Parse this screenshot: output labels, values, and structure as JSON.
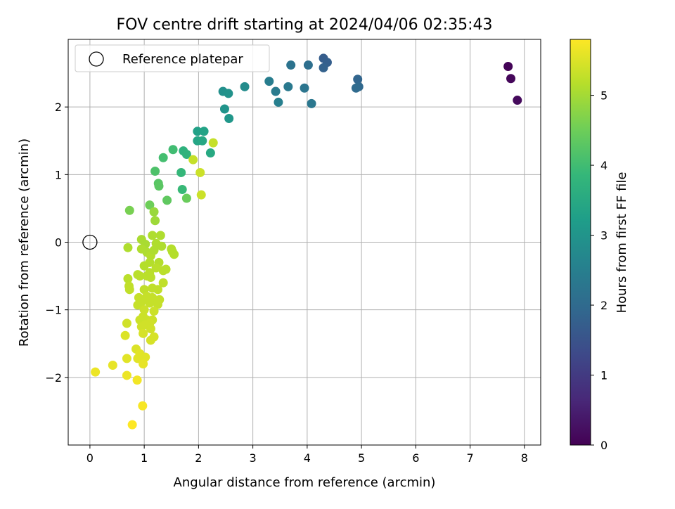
{
  "chart_data": {
    "type": "scatter",
    "title": "FOV centre drift starting at 2024/04/06 02:35:43",
    "xlabel": "Angular distance from reference (arcmin)",
    "ylabel": "Rotation from reference (arcmin)",
    "xlim": [
      -0.4,
      8.3
    ],
    "ylim": [
      -3.0,
      3.0
    ],
    "xticks": [
      0,
      1,
      2,
      3,
      4,
      5,
      6,
      7,
      8
    ],
    "yticks": [
      -2,
      -1,
      0,
      1,
      2
    ],
    "xtick_labels": [
      "0",
      "1",
      "2",
      "3",
      "4",
      "5",
      "6",
      "7",
      "8"
    ],
    "ytick_labels": [
      "−2",
      "−1",
      "0",
      "1",
      "2"
    ],
    "grid": true,
    "legend": {
      "position": "top-left",
      "entries": [
        {
          "label": "Reference platepar",
          "marker": "open-circle"
        }
      ]
    },
    "reference_point": {
      "x": 0,
      "y": 0
    },
    "colorbar": {
      "label": "Hours from first FF file",
      "colormap": "viridis",
      "range": [
        0,
        5.8
      ],
      "ticks": [
        0,
        1,
        2,
        3,
        4,
        5
      ],
      "tick_labels": [
        "0",
        "1",
        "2",
        "3",
        "4",
        "5"
      ],
      "colors": [
        "#440154",
        "#482878",
        "#3e4989",
        "#31688e",
        "#26828e",
        "#1f9e89",
        "#35b779",
        "#6ece58",
        "#b5de2b",
        "#fde725"
      ]
    },
    "points": [
      {
        "x": 7.7,
        "y": 2.6,
        "t": 0.05
      },
      {
        "x": 7.75,
        "y": 2.42,
        "t": 0.1
      },
      {
        "x": 7.87,
        "y": 2.1,
        "t": 0.15
      },
      {
        "x": 4.3,
        "y": 2.72,
        "t": 1.7
      },
      {
        "x": 4.37,
        "y": 2.66,
        "t": 1.75
      },
      {
        "x": 4.3,
        "y": 2.58,
        "t": 1.8
      },
      {
        "x": 4.93,
        "y": 2.41,
        "t": 1.9
      },
      {
        "x": 4.95,
        "y": 2.3,
        "t": 1.95
      },
      {
        "x": 4.9,
        "y": 2.28,
        "t": 2.0
      },
      {
        "x": 4.02,
        "y": 2.62,
        "t": 2.1
      },
      {
        "x": 3.7,
        "y": 2.62,
        "t": 2.2
      },
      {
        "x": 3.95,
        "y": 2.28,
        "t": 2.25
      },
      {
        "x": 4.08,
        "y": 2.05,
        "t": 2.3
      },
      {
        "x": 3.65,
        "y": 2.3,
        "t": 2.35
      },
      {
        "x": 3.42,
        "y": 2.23,
        "t": 2.4
      },
      {
        "x": 3.3,
        "y": 2.38,
        "t": 2.45
      },
      {
        "x": 3.47,
        "y": 2.07,
        "t": 2.5
      },
      {
        "x": 2.85,
        "y": 2.3,
        "t": 2.8
      },
      {
        "x": 2.45,
        "y": 2.23,
        "t": 2.9
      },
      {
        "x": 2.55,
        "y": 2.2,
        "t": 2.95
      },
      {
        "x": 2.48,
        "y": 1.97,
        "t": 3.0
      },
      {
        "x": 2.56,
        "y": 1.83,
        "t": 3.05
      },
      {
        "x": 1.98,
        "y": 1.64,
        "t": 3.3
      },
      {
        "x": 2.1,
        "y": 1.64,
        "t": 3.35
      },
      {
        "x": 1.98,
        "y": 1.5,
        "t": 3.4
      },
      {
        "x": 2.07,
        "y": 1.5,
        "t": 3.45
      },
      {
        "x": 2.22,
        "y": 1.32,
        "t": 3.5
      },
      {
        "x": 1.72,
        "y": 1.35,
        "t": 3.7
      },
      {
        "x": 1.78,
        "y": 1.3,
        "t": 3.75
      },
      {
        "x": 1.68,
        "y": 1.03,
        "t": 3.85
      },
      {
        "x": 1.7,
        "y": 0.78,
        "t": 3.9
      },
      {
        "x": 1.53,
        "y": 1.37,
        "t": 4.0
      },
      {
        "x": 1.35,
        "y": 1.25,
        "t": 4.05
      },
      {
        "x": 1.2,
        "y": 1.05,
        "t": 4.15
      },
      {
        "x": 1.26,
        "y": 0.87,
        "t": 4.25
      },
      {
        "x": 1.27,
        "y": 0.83,
        "t": 4.3
      },
      {
        "x": 1.42,
        "y": 0.62,
        "t": 4.35
      },
      {
        "x": 1.78,
        "y": 0.65,
        "t": 4.45
      },
      {
        "x": 1.1,
        "y": 0.55,
        "t": 4.5
      },
      {
        "x": 0.73,
        "y": 0.47,
        "t": 4.6
      },
      {
        "x": 1.18,
        "y": 0.45,
        "t": 4.9
      },
      {
        "x": 1.2,
        "y": 0.32,
        "t": 4.95
      },
      {
        "x": 2.27,
        "y": 1.47,
        "t": 5.3
      },
      {
        "x": 1.9,
        "y": 1.22,
        "t": 5.3
      },
      {
        "x": 2.03,
        "y": 1.03,
        "t": 5.35
      },
      {
        "x": 2.05,
        "y": 0.7,
        "t": 5.35
      },
      {
        "x": 0.95,
        "y": 0.04,
        "t": 5.05
      },
      {
        "x": 1.02,
        "y": -0.03,
        "t": 5.05
      },
      {
        "x": 1.15,
        "y": 0.1,
        "t": 5.1
      },
      {
        "x": 1.3,
        "y": 0.1,
        "t": 5.1
      },
      {
        "x": 1.22,
        "y": -0.02,
        "t": 5.1
      },
      {
        "x": 1.32,
        "y": -0.06,
        "t": 5.1
      },
      {
        "x": 1.5,
        "y": -0.1,
        "t": 5.15
      },
      {
        "x": 1.55,
        "y": -0.18,
        "t": 5.15
      },
      {
        "x": 1.52,
        "y": -0.14,
        "t": 5.15
      },
      {
        "x": 0.95,
        "y": -0.1,
        "t": 5.1
      },
      {
        "x": 1.05,
        "y": -0.15,
        "t": 5.1
      },
      {
        "x": 1.12,
        "y": -0.2,
        "t": 5.15
      },
      {
        "x": 1.18,
        "y": -0.12,
        "t": 5.1
      },
      {
        "x": 1.1,
        "y": -0.3,
        "t": 5.15
      },
      {
        "x": 1.0,
        "y": -0.35,
        "t": 5.15
      },
      {
        "x": 1.27,
        "y": -0.3,
        "t": 5.15
      },
      {
        "x": 1.35,
        "y": -0.42,
        "t": 5.2
      },
      {
        "x": 1.4,
        "y": -0.4,
        "t": 5.2
      },
      {
        "x": 0.7,
        "y": -0.08,
        "t": 5.1
      },
      {
        "x": 1.1,
        "y": -0.45,
        "t": 5.2
      },
      {
        "x": 1.22,
        "y": -0.38,
        "t": 5.2
      },
      {
        "x": 0.92,
        "y": -0.5,
        "t": 5.2
      },
      {
        "x": 0.88,
        "y": -0.48,
        "t": 5.2
      },
      {
        "x": 1.05,
        "y": -0.5,
        "t": 5.2
      },
      {
        "x": 1.12,
        "y": -0.52,
        "t": 5.2
      },
      {
        "x": 0.7,
        "y": -0.54,
        "t": 5.2
      },
      {
        "x": 1.35,
        "y": -0.6,
        "t": 5.25
      },
      {
        "x": 0.72,
        "y": -0.65,
        "t": 5.25
      },
      {
        "x": 0.73,
        "y": -0.7,
        "t": 5.25
      },
      {
        "x": 1.0,
        "y": -0.7,
        "t": 5.25
      },
      {
        "x": 1.15,
        "y": -0.68,
        "t": 5.25
      },
      {
        "x": 1.25,
        "y": -0.7,
        "t": 5.25
      },
      {
        "x": 1.05,
        "y": -0.8,
        "t": 5.3
      },
      {
        "x": 0.9,
        "y": -0.82,
        "t": 5.3
      },
      {
        "x": 1.15,
        "y": -0.82,
        "t": 5.3
      },
      {
        "x": 1.28,
        "y": -0.85,
        "t": 5.3
      },
      {
        "x": 0.95,
        "y": -0.88,
        "t": 5.3
      },
      {
        "x": 0.88,
        "y": -0.93,
        "t": 5.3
      },
      {
        "x": 1.1,
        "y": -0.9,
        "t": 5.3
      },
      {
        "x": 1.25,
        "y": -0.92,
        "t": 5.3
      },
      {
        "x": 1.0,
        "y": -1.0,
        "t": 5.35
      },
      {
        "x": 1.18,
        "y": -1.02,
        "t": 5.35
      },
      {
        "x": 0.98,
        "y": -1.1,
        "t": 5.35
      },
      {
        "x": 1.05,
        "y": -1.15,
        "t": 5.35
      },
      {
        "x": 0.92,
        "y": -1.15,
        "t": 5.35
      },
      {
        "x": 1.15,
        "y": -1.15,
        "t": 5.35
      },
      {
        "x": 1.1,
        "y": -1.2,
        "t": 5.4
      },
      {
        "x": 1.02,
        "y": -1.22,
        "t": 5.4
      },
      {
        "x": 0.95,
        "y": -1.25,
        "t": 5.4
      },
      {
        "x": 1.12,
        "y": -1.28,
        "t": 5.4
      },
      {
        "x": 0.68,
        "y": -1.2,
        "t": 5.4
      },
      {
        "x": 0.98,
        "y": -1.35,
        "t": 5.45
      },
      {
        "x": 1.18,
        "y": -1.4,
        "t": 5.45
      },
      {
        "x": 1.12,
        "y": -1.45,
        "t": 5.45
      },
      {
        "x": 0.65,
        "y": -1.38,
        "t": 5.5
      },
      {
        "x": 0.85,
        "y": -1.58,
        "t": 5.5
      },
      {
        "x": 0.92,
        "y": -1.65,
        "t": 5.55
      },
      {
        "x": 1.02,
        "y": -1.7,
        "t": 5.55
      },
      {
        "x": 0.88,
        "y": -1.72,
        "t": 5.55
      },
      {
        "x": 0.68,
        "y": -1.72,
        "t": 5.55
      },
      {
        "x": 0.98,
        "y": -1.8,
        "t": 5.6
      },
      {
        "x": 0.42,
        "y": -1.82,
        "t": 5.6
      },
      {
        "x": 0.1,
        "y": -1.92,
        "t": 5.65
      },
      {
        "x": 0.68,
        "y": -1.97,
        "t": 5.65
      },
      {
        "x": 0.87,
        "y": -2.04,
        "t": 5.7
      },
      {
        "x": 0.97,
        "y": -2.42,
        "t": 5.75
      },
      {
        "x": 0.78,
        "y": -2.7,
        "t": 5.8
      }
    ]
  }
}
